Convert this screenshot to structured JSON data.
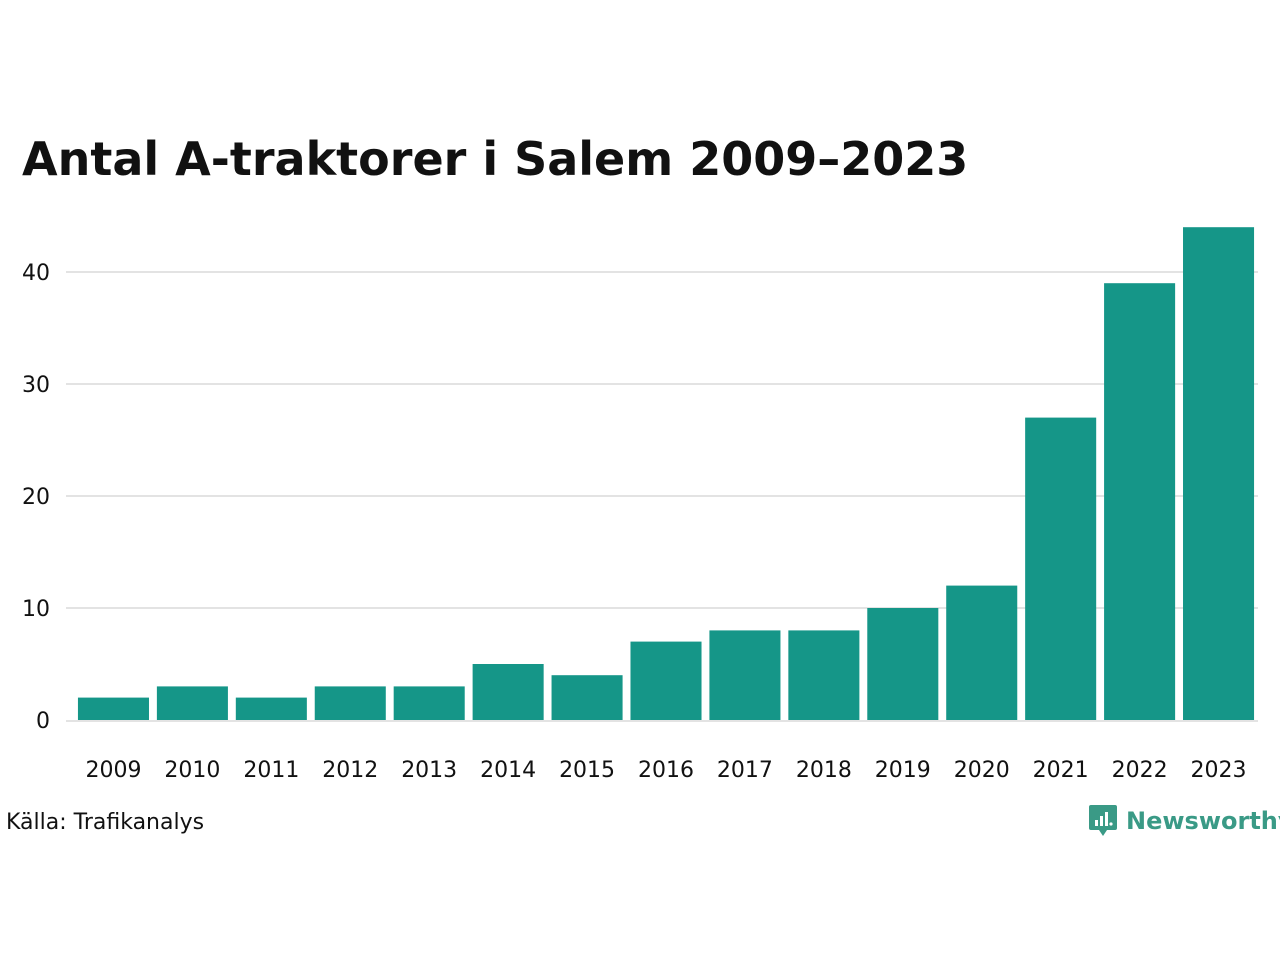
{
  "title": "Antal A-traktorer i Salem 2009–2023",
  "source": "Källa: Trafikanalys",
  "brand": {
    "name": "Newsworthy",
    "icon": "newsworthy-logo-icon"
  },
  "colors": {
    "bar": "#159688",
    "grid": "#e3e3e3",
    "text": "#111111",
    "brand": "#3a9a86"
  },
  "chart_data": {
    "type": "bar",
    "title": "Antal A-traktorer i Salem 2009–2023",
    "xlabel": "",
    "ylabel": "",
    "categories": [
      "2009",
      "2010",
      "2011",
      "2012",
      "2013",
      "2014",
      "2015",
      "2016",
      "2017",
      "2018",
      "2019",
      "2020",
      "2021",
      "2022",
      "2023"
    ],
    "values": [
      2,
      3,
      2,
      3,
      3,
      5,
      4,
      7,
      8,
      8,
      10,
      12,
      27,
      39,
      44
    ],
    "yticks": [
      0,
      10,
      20,
      30,
      40
    ],
    "ylim": [
      0,
      44
    ],
    "grid": true
  }
}
